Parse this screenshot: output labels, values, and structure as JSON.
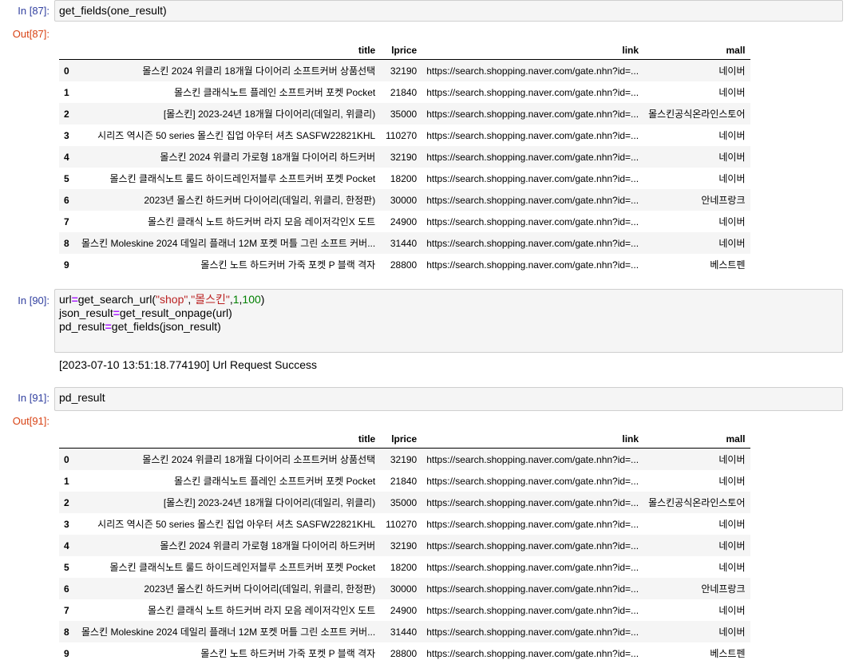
{
  "cells": [
    {
      "in_prompt": "In [87]:",
      "code": "get_fields(one_result)",
      "out_prompt": "Out[87]:"
    },
    {
      "in_prompt": "In [90]:",
      "code_parts": {
        "a": "url",
        "eq": "=",
        "b": "get_search_url(",
        "s1": "\"shop\"",
        "c": ",",
        "s2": "\"몰스킨\"",
        "d": ",",
        "n1": "1",
        "e": ",",
        "n2": "100",
        "f": ")"
      },
      "line2": {
        "a": "json_result",
        "eq": "=",
        "b": "get_result_onpage(url)"
      },
      "line3": {
        "a": "pd_result",
        "eq": "=",
        "b": "get_fields(json_result)"
      },
      "stdout": "[2023-07-10 13:51:18.774190] Url Request Success"
    },
    {
      "in_prompt": "In [91]:",
      "code": "pd_result",
      "out_prompt": "Out[91]:"
    }
  ],
  "table": {
    "columns": [
      "title",
      "lprice",
      "link",
      "mall"
    ],
    "rows": [
      {
        "i": "0",
        "title": "몰스킨 2024 위클리 18개월 다이어리 소프트커버 상품선택",
        "lprice": "32190",
        "link": "https://search.shopping.naver.com/gate.nhn?id=...",
        "mall": "네이버"
      },
      {
        "i": "1",
        "title": "몰스킨 클래식노트 플레인 소프트커버 포켓 Pocket",
        "lprice": "21840",
        "link": "https://search.shopping.naver.com/gate.nhn?id=...",
        "mall": "네이버"
      },
      {
        "i": "2",
        "title": "[몰스킨] 2023-24년 18개월 다이어리(데일리, 위클리)",
        "lprice": "35000",
        "link": "https://search.shopping.naver.com/gate.nhn?id=...",
        "mall": "몰스킨공식온라인스토어"
      },
      {
        "i": "3",
        "title": "시리즈 역시즌 50 series 몰스킨 집업 아우터 셔츠 SASFW22821KHL",
        "lprice": "110270",
        "link": "https://search.shopping.naver.com/gate.nhn?id=...",
        "mall": "네이버"
      },
      {
        "i": "4",
        "title": "몰스킨 2024 위클리 가로형 18개월 다이어리 하드커버",
        "lprice": "32190",
        "link": "https://search.shopping.naver.com/gate.nhn?id=...",
        "mall": "네이버"
      },
      {
        "i": "5",
        "title": "몰스킨 클래식노트 룰드 하이드레인저블루 소프트커버 포켓 Pocket",
        "lprice": "18200",
        "link": "https://search.shopping.naver.com/gate.nhn?id=...",
        "mall": "네이버"
      },
      {
        "i": "6",
        "title": "2023년 몰스킨 하드커버 다이어리(데일리, 위클리, 한정판)",
        "lprice": "30000",
        "link": "https://search.shopping.naver.com/gate.nhn?id=...",
        "mall": "안네프랑크"
      },
      {
        "i": "7",
        "title": "몰스킨 클래식 노트 하드커버 라지 모음 레이저각인X 도트",
        "lprice": "24900",
        "link": "https://search.shopping.naver.com/gate.nhn?id=...",
        "mall": "네이버"
      },
      {
        "i": "8",
        "title": "몰스킨 Moleskine 2024 데일리 플래너 12M 포켓 머틀 그린 소프트 커버...",
        "lprice": "31440",
        "link": "https://search.shopping.naver.com/gate.nhn?id=...",
        "mall": "네이버"
      },
      {
        "i": "9",
        "title": "몰스킨 노트 하드커버 가죽 포켓 P 블랙 격자",
        "lprice": "28800",
        "link": "https://search.shopping.naver.com/gate.nhn?id=...",
        "mall": "베스트펜"
      }
    ]
  }
}
